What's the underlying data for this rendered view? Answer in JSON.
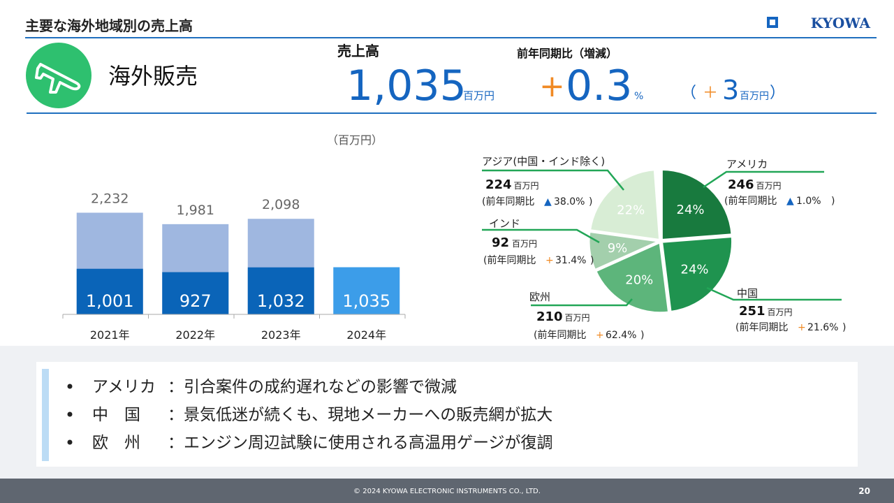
{
  "header": {
    "title": "主要な海外地域別の売上高",
    "logo": "KYOWA",
    "section": "海外販売"
  },
  "kpi": {
    "sales_label": "売上高",
    "sales_value": "1,035",
    "sales_unit": "百万円",
    "yoy_label": "前年同期比（増減）",
    "yoy_sign": "+",
    "yoy_value": "0.3",
    "yoy_unit": "%",
    "diff_open": "（",
    "diff_sign": "＋",
    "diff_value": "3",
    "diff_unit": "百万円",
    "diff_close": "）"
  },
  "chart_data": [
    {
      "type": "bar",
      "unit": "（百万円）",
      "categories": [
        "2021年",
        "2022年",
        "2023年",
        "2024年"
      ],
      "ylim": [
        0,
        2500
      ],
      "series": [
        {
          "color": "#9fb7e0",
          "values": [
            2232,
            1981,
            2098,
            null
          ],
          "value_labels": [
            "2,232",
            "1,981",
            "2,098",
            null
          ],
          "label_color": "#666666"
        },
        {
          "colors": [
            "#0a64b8",
            "#0a64b8",
            "#0a64b8",
            "#3c9de9"
          ],
          "values": [
            1001,
            927,
            1032,
            1035
          ],
          "value_labels": [
            "1,001",
            "927",
            "1,032",
            "1,035"
          ],
          "label_color": "#ffffff"
        }
      ]
    },
    {
      "type": "pie",
      "categories": [
        "アメリカ",
        "中国",
        "欧州",
        "インド",
        "アジア(中国・インド除く)",
        null
      ],
      "values": [
        246,
        251,
        210,
        92,
        224,
        12
      ],
      "value_labels": [
        "24%",
        "24%",
        "20%",
        "9%",
        "22%",
        null
      ],
      "colors": [
        "#187a3e",
        "#1f934f",
        "#5db57b",
        "#a3cfac",
        "#d8edd5",
        "#ffffff"
      ],
      "line_color": "#22a657",
      "unit": "百万円",
      "change_prefix": "(前年同期比",
      "change_suffix": ")",
      "change_signs": [
        "▲",
        "+",
        "+",
        "+",
        "▲",
        null
      ],
      "change_sign_colors": [
        "#1565c0",
        "#f08a24",
        "#f08a24",
        "#f08a24",
        "#1565c0",
        null
      ],
      "change_values": [
        "1.0%",
        "21.6%",
        "62.4%",
        "31.4%",
        "38.0%",
        null
      ]
    }
  ],
  "bullets": [
    {
      "label": "アメリカ",
      "text": "：引合案件の成約遅れなどの影響で微減"
    },
    {
      "label": "中　国",
      "text": "：景気低迷が続くも、現地メーカーへの販売網が拡大"
    },
    {
      "label": "欧　州",
      "text": "：エンジン周辺試験に使用される高温用ゲージが復調"
    }
  ],
  "footer": {
    "copyright": "© 2024 KYOWA ELECTRONIC INSTRUMENTS CO., LTD.",
    "page": "20"
  }
}
